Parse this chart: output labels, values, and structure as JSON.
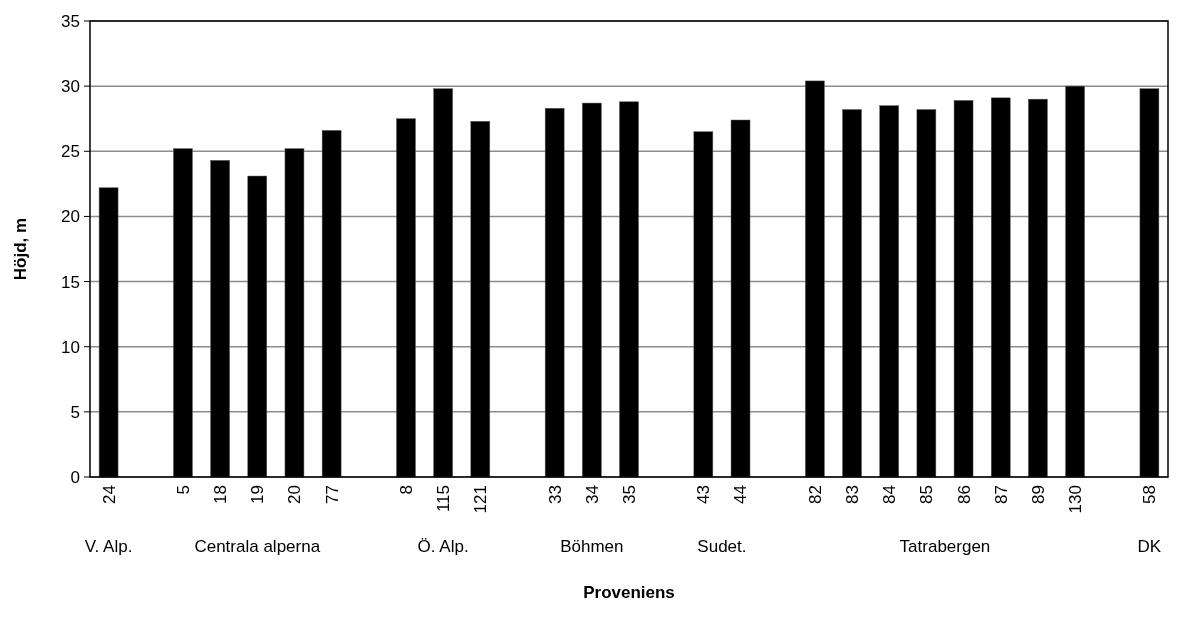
{
  "chart_data": {
    "type": "bar",
    "xlabel": "Proveniens",
    "ylabel": "Höjd, m",
    "categories": [
      "24",
      null,
      "5",
      "18",
      "19",
      "20",
      "77",
      null,
      "8",
      "115",
      "121",
      null,
      "33",
      "34",
      "35",
      null,
      "43",
      "44",
      null,
      "82",
      "83",
      "84",
      "85",
      "86",
      "87",
      "89",
      "130",
      null,
      "58"
    ],
    "values": [
      22.2,
      null,
      25.2,
      24.3,
      23.1,
      25.2,
      26.6,
      null,
      27.5,
      29.8,
      27.3,
      null,
      28.3,
      28.7,
      28.8,
      null,
      26.5,
      27.4,
      null,
      30.4,
      28.2,
      28.5,
      28.2,
      28.9,
      29.1,
      29.0,
      30.0,
      null,
      29.8
    ],
    "color": "#000000",
    "ylim": [
      0,
      35
    ],
    "yticks": [
      0,
      5,
      10,
      15,
      20,
      25,
      30,
      35
    ],
    "grid": "y",
    "annotations": [
      "V. Alp.",
      "Centrala alperna",
      "Ö. Alp.",
      "Böhmen",
      "Sudet.",
      "Tatrabergen",
      "DK"
    ]
  }
}
